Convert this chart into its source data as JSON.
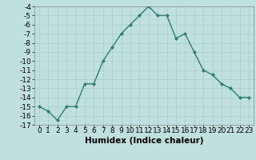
{
  "x": [
    0,
    1,
    2,
    3,
    4,
    5,
    6,
    7,
    8,
    9,
    10,
    11,
    12,
    13,
    14,
    15,
    16,
    17,
    18,
    19,
    20,
    21,
    22,
    23
  ],
  "y": [
    -15,
    -15.5,
    -16.5,
    -15,
    -15,
    -12.5,
    -12.5,
    -10,
    -8.5,
    -7,
    -6,
    -5,
    -4,
    -5,
    -5,
    -7.5,
    -7,
    -9,
    -11,
    -11.5,
    -12.5,
    -13,
    -14,
    -14
  ],
  "line_color": "#2e7d6e",
  "marker": "D",
  "marker_size": 2.0,
  "bg_color": "#c0e0e0",
  "grid_color": "#a8cccc",
  "xlabel": "Humidex (Indice chaleur)",
  "xlim": [
    -0.5,
    23.5
  ],
  "ylim": [
    -17,
    -4
  ],
  "yticks": [
    -4,
    -5,
    -6,
    -7,
    -8,
    -9,
    -10,
    -11,
    -12,
    -13,
    -14,
    -15,
    -16,
    -17
  ],
  "xticks": [
    0,
    1,
    2,
    3,
    4,
    5,
    6,
    7,
    8,
    9,
    10,
    11,
    12,
    13,
    14,
    15,
    16,
    17,
    18,
    19,
    20,
    21,
    22,
    23
  ],
  "xlabel_fontsize": 7.5,
  "tick_fontsize": 6.5,
  "line_width": 1.0
}
